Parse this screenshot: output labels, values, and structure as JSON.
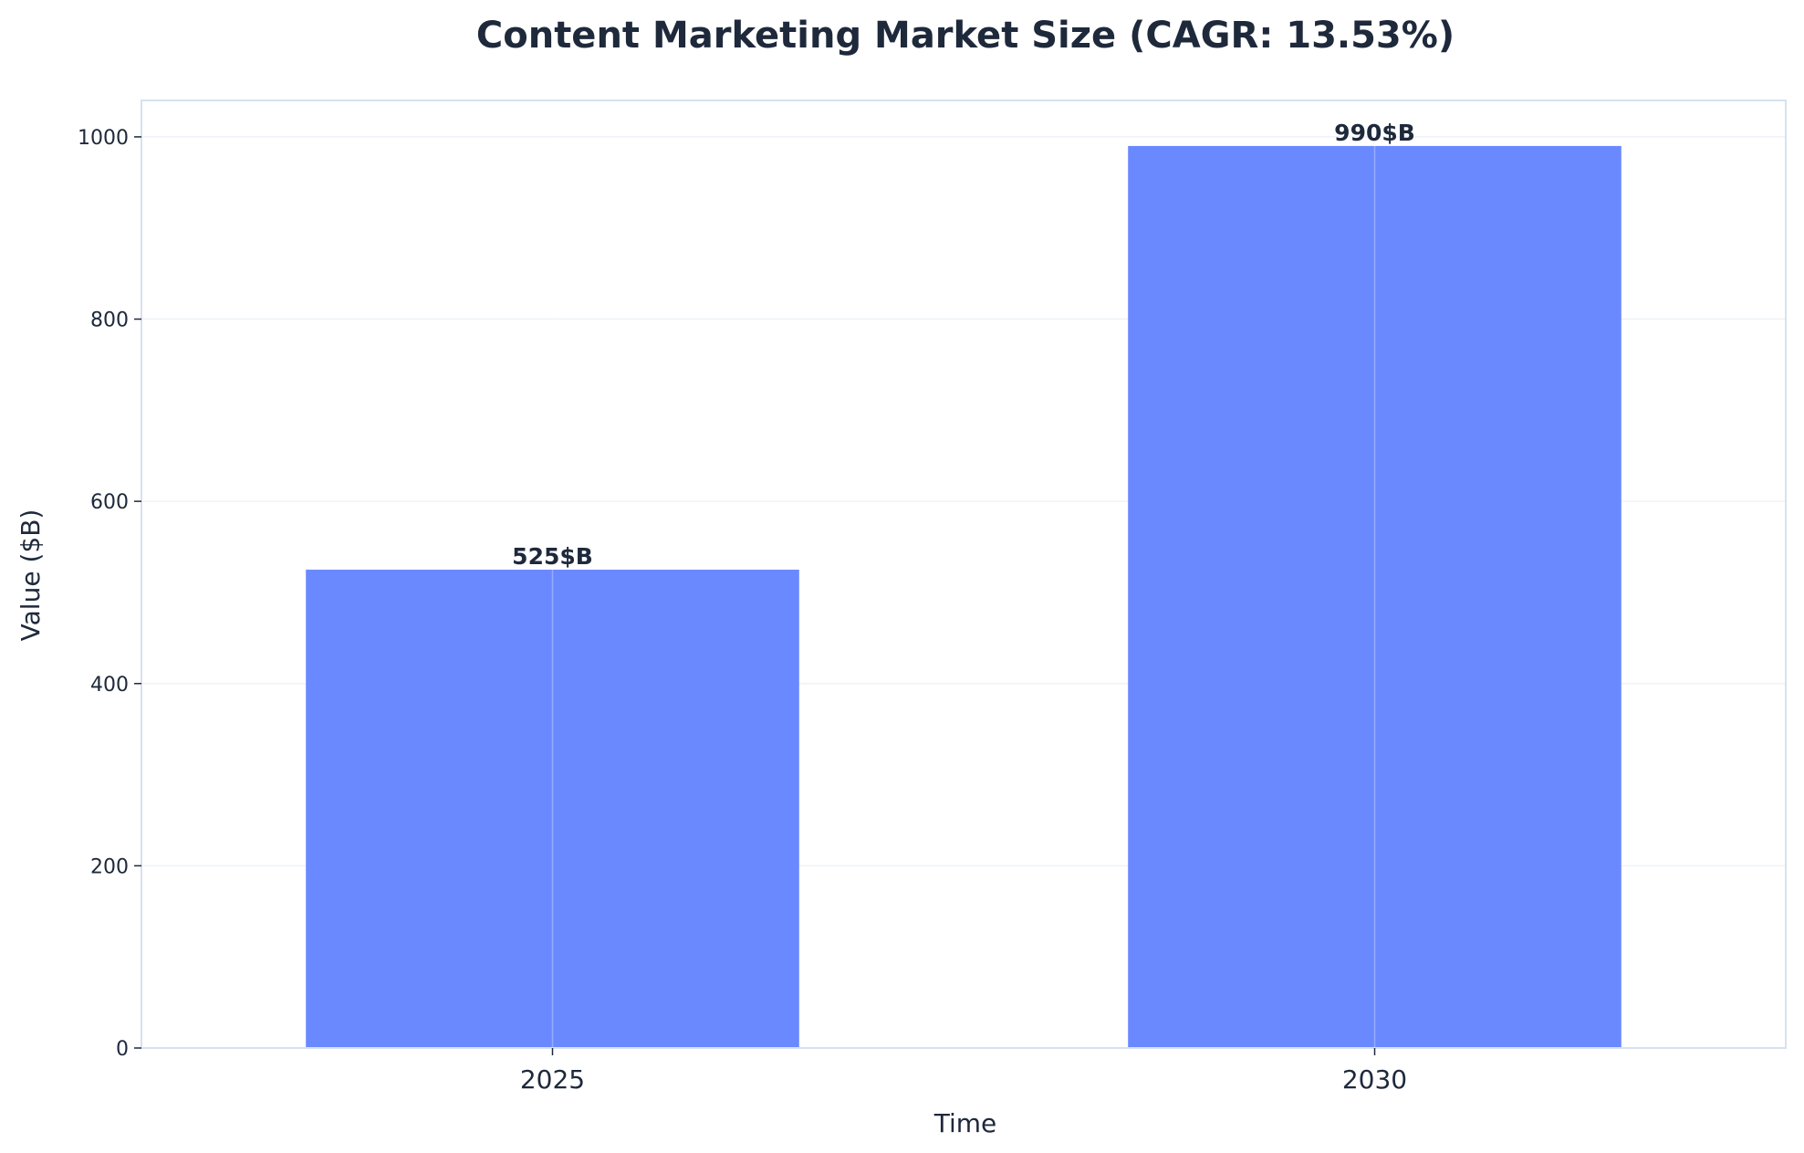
{
  "chart_data": {
    "type": "bar",
    "title": "Content Marketing Market Size (CAGR: 13.53%)",
    "xlabel": "Time",
    "ylabel": "Value ($B)",
    "categories": [
      "2025",
      "2030"
    ],
    "values": [
      525,
      990
    ],
    "value_labels": [
      "525$B",
      "990$B"
    ],
    "ylim": [
      0,
      1040
    ],
    "yticks": [
      0,
      200,
      400,
      600,
      800,
      1000
    ],
    "ytick_labels": [
      "0",
      "200",
      "400",
      "600",
      "800",
      "1000"
    ],
    "grid": true,
    "bar_color": "#6b89ff",
    "frame_color": "#d6e2ee",
    "text_color": "#1e293b"
  }
}
